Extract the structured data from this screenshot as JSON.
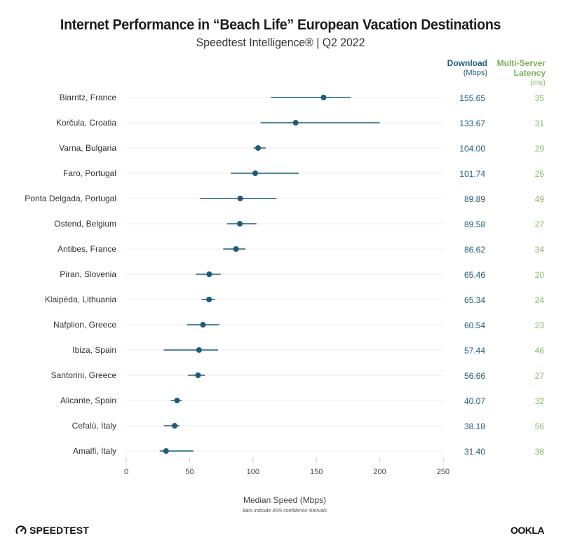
{
  "header": {
    "title": "Internet Performance in “Beach Life” European Vacation Destinations",
    "subtitle": "Speedtest Intelligence® | Q2 2022"
  },
  "columns": {
    "download": {
      "label": "Download",
      "unit": "(Mbps)",
      "color": "#1e5b7b"
    },
    "latency": {
      "label_line1": "Multi-Server",
      "label_line2": "Latency",
      "unit": "(ms)",
      "color": "#7ab05a"
    }
  },
  "chart_data": {
    "type": "scatter",
    "subtype": "dot-with-error-bars",
    "title": "Internet Performance in “Beach Life” European Vacation Destinations",
    "subtitle": "Speedtest Intelligence® | Q2 2022",
    "xlabel": "Median Speed (Mbps)",
    "note": "Bars indicate 95% confidence intervals",
    "xlim": [
      0,
      250
    ],
    "xticks": [
      0,
      50,
      100,
      150,
      200,
      250
    ],
    "grid": true,
    "point_color": "#1e5b7b",
    "categories": [
      "Biarritz, France",
      "Korčula, Croatia",
      "Varna, Bulgaria",
      "Faro, Portugal",
      "Ponta Delgada, Portugal",
      "Ostend, Belgium",
      "Antibes, France",
      "Piran, Slovenia",
      "Klaipėda, Lithuania",
      "Nafplion, Greece",
      "Ibiza, Spain",
      "Santorini, Greece",
      "Alicante, Spain",
      "Cefalù, Italy",
      "Amalfi, Italy"
    ],
    "series": [
      {
        "name": "Download (Mbps)",
        "values": [
          155.65,
          133.67,
          104.0,
          101.74,
          89.89,
          89.58,
          86.62,
          65.46,
          65.34,
          60.54,
          57.44,
          56.66,
          40.07,
          38.18,
          31.4
        ],
        "labels": [
          "155.65",
          "133.67",
          "104.00",
          "101.74",
          "89.89",
          "89.58",
          "86.62",
          "65.46",
          "65.34",
          "60.54",
          "57.44",
          "56.66",
          "40.07",
          "38.18",
          "31.40"
        ],
        "ci_low": [
          114,
          106,
          100.5,
          82.4,
          58,
          79.6,
          76.5,
          54.8,
          59.4,
          48,
          29.5,
          48.7,
          35.2,
          29.7,
          26.4
        ],
        "ci_high": [
          177,
          200,
          110,
          136,
          118.5,
          102.7,
          94,
          74.5,
          70,
          73.4,
          72.5,
          62,
          44,
          42,
          53
        ]
      },
      {
        "name": "Multi-Server Latency (ms)",
        "values": [
          35,
          31,
          29,
          25,
          49,
          27,
          34,
          20,
          24,
          23,
          46,
          27,
          32,
          56,
          38
        ]
      }
    ]
  },
  "footer": {
    "speedtest_logo": "SPEEDTEST",
    "ookla_logo": "OOKLA"
  }
}
